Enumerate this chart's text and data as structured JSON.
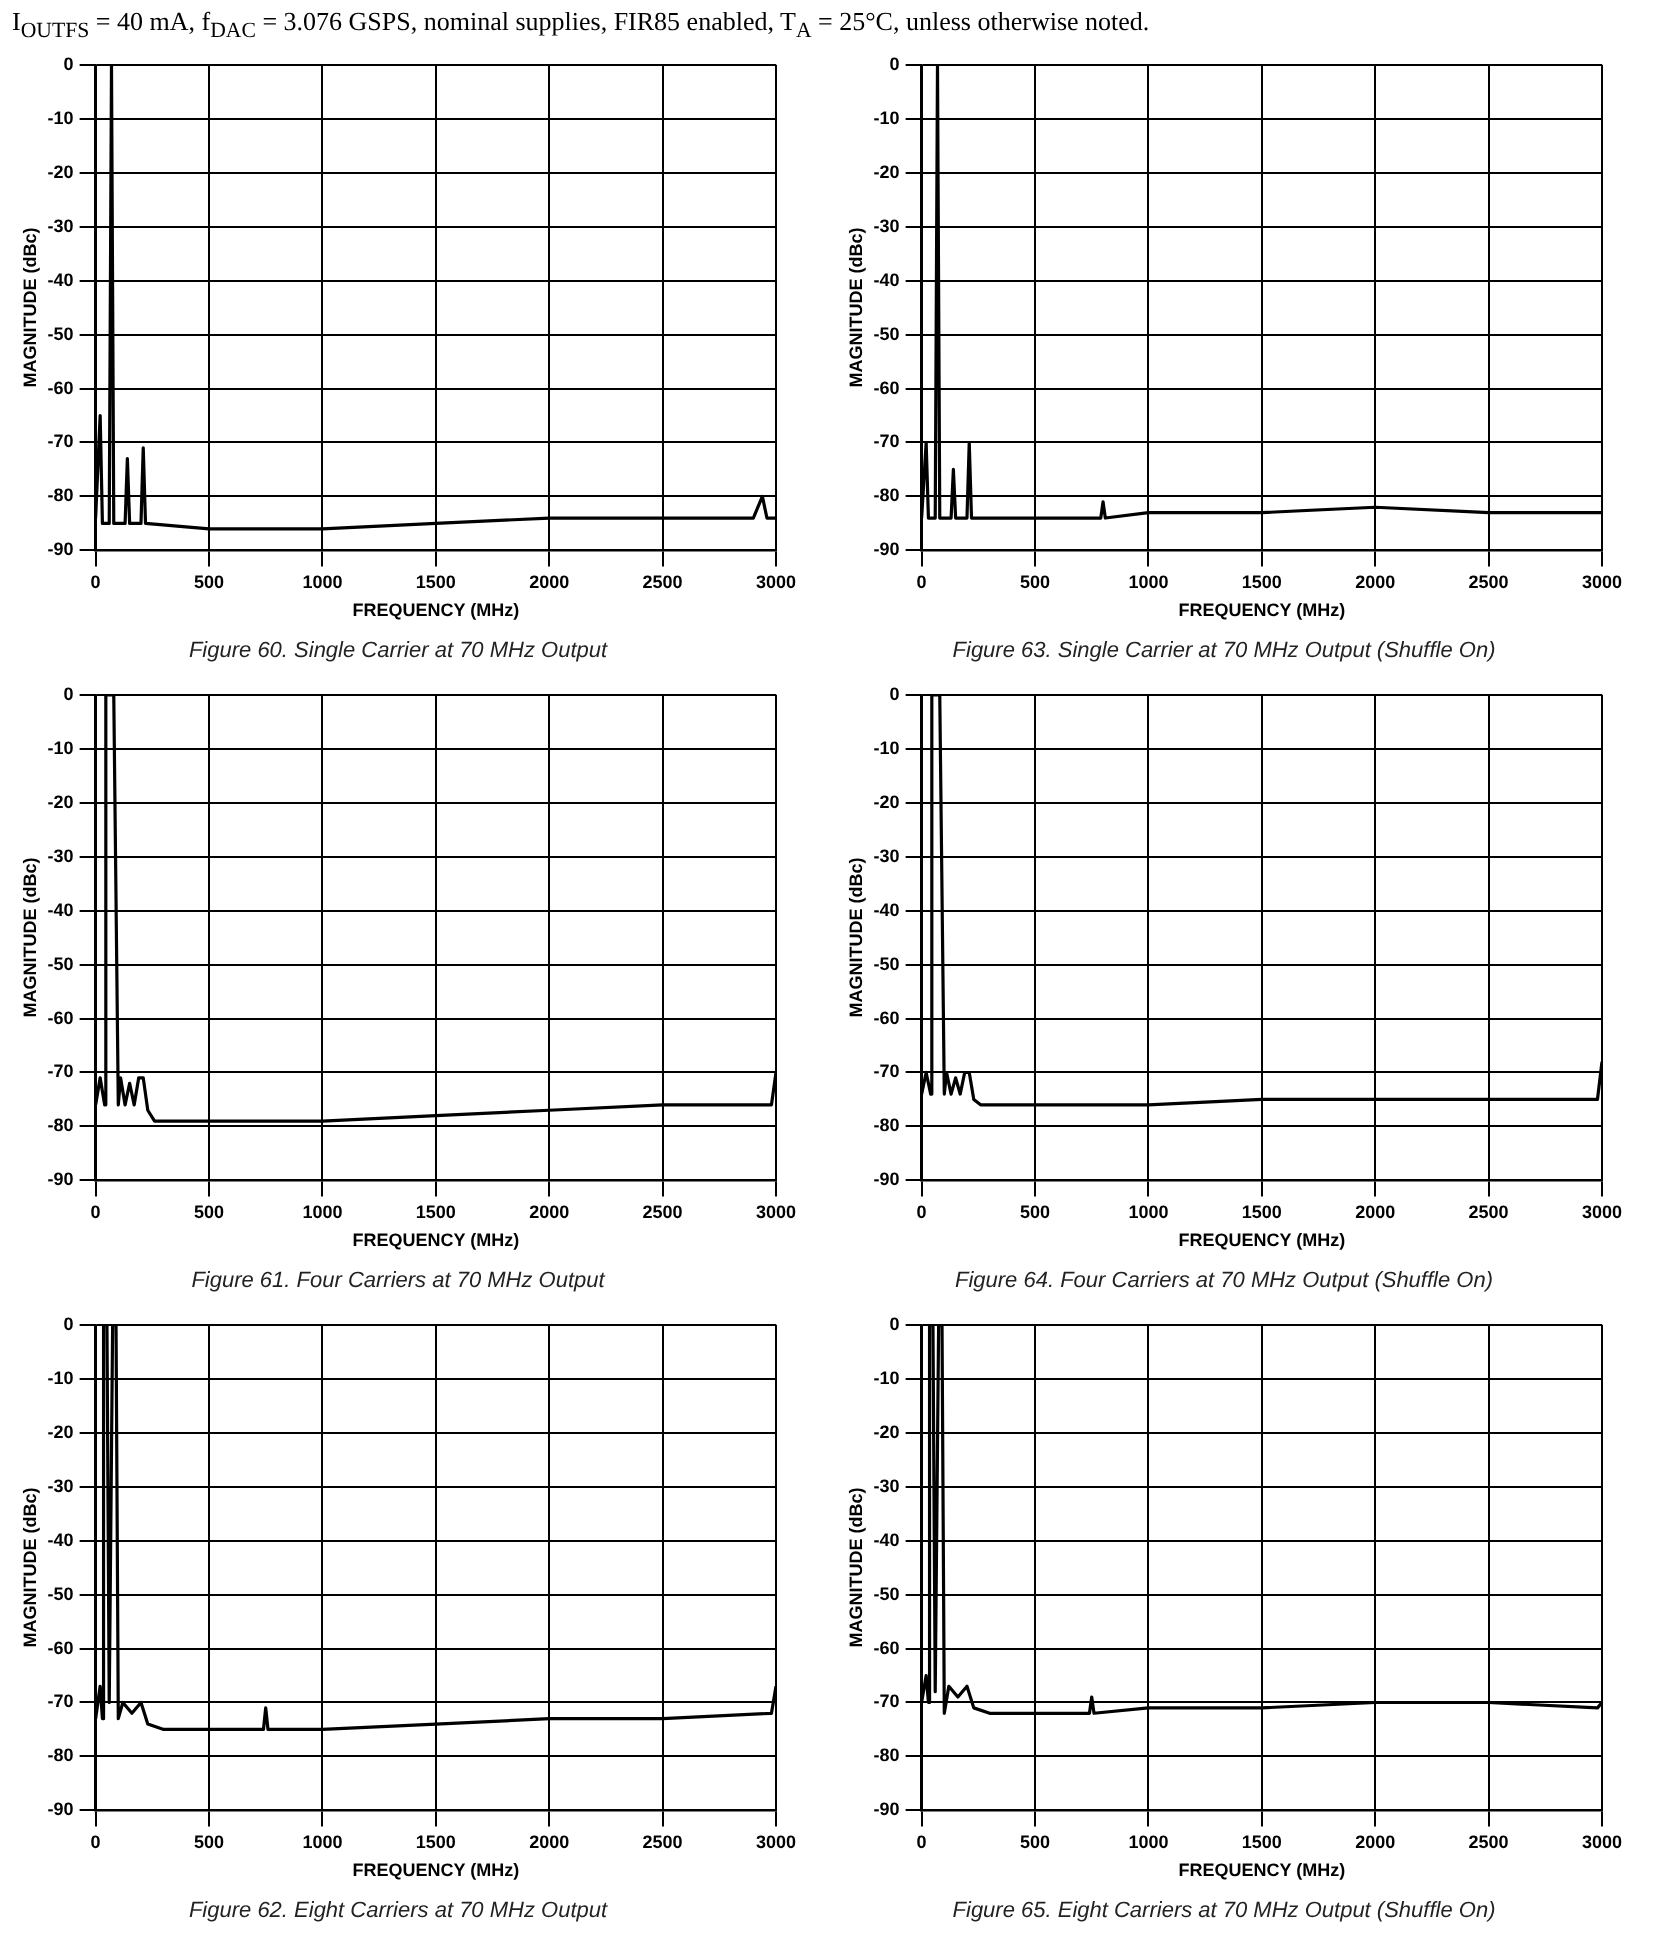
{
  "chart_data": [
    {
      "type": "line",
      "title": "Figure 60. Single Carrier at 70 MHz Output",
      "xlabel": "FREQUENCY (MHz)",
      "ylabel": "MAGNITUDE (dBc)",
      "annotations": [
        "I$_{OUTFS}$ = 40 mA, f$_{DAC}$ = 3.076 GSPS, nominal supplies, FIR85 enabled, T$_{A}$ = 25°C, unless otherwise noted."
      ],
      "color": "#000000",
      "x": [
        0,
        20,
        30,
        60,
        70,
        80,
        130,
        140,
        150,
        200,
        210,
        220,
        500,
        1000,
        1500,
        2000,
        2500,
        2900,
        2940,
        2960,
        3000
      ],
      "values": [
        -84,
        -65,
        -85,
        -85,
        0,
        -85,
        -85,
        -73,
        -85,
        -85,
        -71,
        -85,
        -86,
        -86,
        -85,
        -84,
        -84,
        -84,
        -80,
        -84,
        -84
      ],
      "xlim": [
        0,
        3000
      ],
      "ylim": [
        -90,
        0
      ],
      "xticks": [
        0,
        500,
        1000,
        1500,
        2000,
        2500,
        3000
      ],
      "yticks": [
        0,
        -10,
        -20,
        -30,
        -40,
        -50,
        -60,
        -70,
        -80,
        -90
      ],
      "grid": true
    },
    {
      "type": "line",
      "title": "Figure 63. Single Carrier at 70 MHz Output (Shuffle On)",
      "xlabel": "FREQUENCY (MHz)",
      "ylabel": "MAGNITUDE (dBc)",
      "color": "#000000",
      "x": [
        0,
        20,
        30,
        60,
        70,
        80,
        130,
        140,
        150,
        200,
        210,
        220,
        500,
        790,
        800,
        810,
        1000,
        1500,
        2000,
        2500,
        3000
      ],
      "values": [
        -84,
        -70,
        -84,
        -84,
        0,
        -84,
        -84,
        -75,
        -84,
        -84,
        -70,
        -84,
        -84,
        -84,
        -81,
        -84,
        -83,
        -83,
        -82,
        -83,
        -83
      ],
      "xlim": [
        0,
        3000
      ],
      "ylim": [
        -90,
        0
      ],
      "xticks": [
        0,
        500,
        1000,
        1500,
        2000,
        2500,
        3000
      ],
      "yticks": [
        0,
        -10,
        -20,
        -30,
        -40,
        -50,
        -60,
        -70,
        -80,
        -90
      ],
      "grid": true
    },
    {
      "type": "line",
      "title": "Figure 61. Four Carriers at 70 MHz Output",
      "xlabel": "FREQUENCY (MHz)",
      "ylabel": "MAGNITUDE (dBc)",
      "color": "#000000",
      "x": [
        0,
        20,
        40,
        45,
        60,
        65,
        80,
        100,
        110,
        130,
        150,
        170,
        190,
        210,
        230,
        260,
        300,
        500,
        1000,
        1500,
        2000,
        2500,
        2980,
        3000
      ],
      "values": [
        -76,
        -71,
        -76,
        0,
        0,
        0,
        0,
        -76,
        -71,
        -76,
        -72,
        -76,
        -71,
        -71,
        -77,
        -79,
        -79,
        -79,
        -79,
        -78,
        -77,
        -76,
        -76,
        -70
      ],
      "xlim": [
        0,
        3000
      ],
      "ylim": [
        -90,
        0
      ],
      "xticks": [
        0,
        500,
        1000,
        1500,
        2000,
        2500,
        3000
      ],
      "yticks": [
        0,
        -10,
        -20,
        -30,
        -40,
        -50,
        -60,
        -70,
        -80,
        -90
      ],
      "grid": true
    },
    {
      "type": "line",
      "title": "Figure 64. Four Carriers at 70 MHz Output (Shuffle On)",
      "xlabel": "FREQUENCY (MHz)",
      "ylabel": "MAGNITUDE (dBc)",
      "color": "#000000",
      "x": [
        0,
        20,
        40,
        45,
        60,
        65,
        80,
        100,
        110,
        130,
        150,
        170,
        190,
        210,
        230,
        260,
        300,
        500,
        1000,
        1500,
        2000,
        2500,
        2980,
        3000
      ],
      "values": [
        -74,
        -70,
        -74,
        0,
        0,
        0,
        0,
        -74,
        -70,
        -74,
        -71,
        -74,
        -70,
        -70,
        -75,
        -76,
        -76,
        -76,
        -76,
        -75,
        -75,
        -75,
        -75,
        -68
      ],
      "xlim": [
        0,
        3000
      ],
      "ylim": [
        -90,
        0
      ],
      "xticks": [
        0,
        500,
        1000,
        1500,
        2000,
        2500,
        3000
      ],
      "yticks": [
        0,
        -10,
        -20,
        -30,
        -40,
        -50,
        -60,
        -70,
        -80,
        -90
      ],
      "grid": true
    },
    {
      "type": "line",
      "title": "Figure 62. Eight Carriers at 70 MHz Output",
      "xlabel": "FREQUENCY (MHz)",
      "ylabel": "MAGNITUDE (dBc)",
      "color": "#000000",
      "x": [
        0,
        20,
        30,
        35,
        50,
        60,
        75,
        90,
        100,
        120,
        160,
        200,
        230,
        300,
        500,
        740,
        750,
        760,
        1000,
        1500,
        2000,
        2500,
        2980,
        3000
      ],
      "values": [
        -73,
        -67,
        -73,
        0,
        0,
        -70,
        0,
        0,
        -73,
        -70,
        -72,
        -70,
        -74,
        -75,
        -75,
        -75,
        -71,
        -75,
        -75,
        -74,
        -73,
        -73,
        -72,
        -67
      ],
      "xlim": [
        0,
        3000
      ],
      "ylim": [
        -90,
        0
      ],
      "xticks": [
        0,
        500,
        1000,
        1500,
        2000,
        2500,
        3000
      ],
      "yticks": [
        0,
        -10,
        -20,
        -30,
        -40,
        -50,
        -60,
        -70,
        -80,
        -90
      ],
      "grid": true
    },
    {
      "type": "line",
      "title": "Figure 65. Eight Carriers at 70 MHz Output (Shuffle On)",
      "xlabel": "FREQUENCY (MHz)",
      "ylabel": "MAGNITUDE (dBc)",
      "color": "#000000",
      "x": [
        0,
        20,
        30,
        35,
        50,
        60,
        75,
        90,
        100,
        120,
        160,
        200,
        230,
        300,
        500,
        740,
        750,
        760,
        1000,
        1500,
        2000,
        2500,
        2980,
        3000
      ],
      "values": [
        -70,
        -65,
        -70,
        0,
        0,
        -68,
        0,
        0,
        -72,
        -67,
        -69,
        -67,
        -71,
        -72,
        -72,
        -72,
        -69,
        -72,
        -71,
        -71,
        -70,
        -70,
        -71,
        -70
      ],
      "xlim": [
        0,
        3000
      ],
      "ylim": [
        -90,
        0
      ],
      "xticks": [
        0,
        500,
        1000,
        1500,
        2000,
        2500,
        3000
      ],
      "yticks": [
        0,
        -10,
        -20,
        -30,
        -40,
        -50,
        -60,
        -70,
        -80,
        -90
      ],
      "grid": true
    }
  ]
}
